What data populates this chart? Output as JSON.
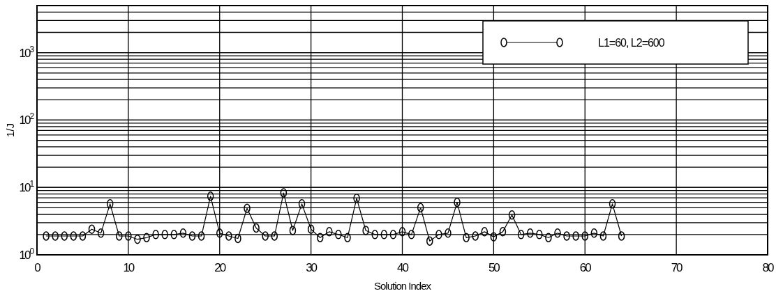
{
  "chart_data": {
    "type": "line",
    "xlabel": "Solution Index",
    "ylabel": "1/J",
    "x": [
      1,
      2,
      3,
      4,
      5,
      6,
      7,
      8,
      9,
      10,
      11,
      12,
      13,
      14,
      15,
      16,
      17,
      18,
      19,
      20,
      21,
      22,
      23,
      24,
      25,
      26,
      27,
      28,
      29,
      30,
      31,
      32,
      33,
      34,
      35,
      36,
      37,
      38,
      39,
      40,
      41,
      42,
      43,
      44,
      45,
      46,
      47,
      48,
      49,
      50,
      51,
      52,
      53,
      54,
      55,
      56,
      57,
      58,
      59,
      60,
      61,
      62,
      63,
      64
    ],
    "series": [
      {
        "name": "L1=60, L2=600",
        "color": "#000000",
        "values": [
          1.9,
          1.9,
          1.9,
          1.9,
          1.9,
          2.4,
          2.1,
          5.7,
          1.9,
          1.9,
          1.7,
          1.8,
          2.0,
          2.0,
          2.0,
          2.1,
          1.9,
          1.9,
          7.4,
          2.1,
          1.9,
          1.75,
          4.9,
          2.5,
          1.9,
          1.9,
          8.3,
          2.3,
          5.7,
          2.4,
          1.8,
          2.2,
          2.0,
          1.8,
          6.9,
          2.3,
          2.0,
          2.0,
          2.0,
          2.2,
          2.0,
          5.0,
          1.6,
          2.0,
          2.1,
          6.0,
          1.8,
          1.9,
          2.2,
          1.85,
          2.2,
          3.9,
          2.0,
          2.1,
          2.0,
          1.8,
          2.1,
          1.9,
          1.9,
          1.9,
          2.1,
          1.9,
          5.7,
          1.9
        ]
      }
    ],
    "xlim": [
      0,
      80
    ],
    "xticks": [
      0,
      10,
      20,
      30,
      40,
      50,
      60,
      70,
      80
    ],
    "ylim": [
      1,
      5000
    ],
    "yticks": [
      {
        "value": 1,
        "label": "10$^{0}$"
      },
      {
        "value": 10,
        "label": "10$^{1}$"
      },
      {
        "value": 100,
        "label": "10$^{2}$"
      },
      {
        "value": 1000,
        "label": "10$^{3}$"
      }
    ],
    "log": "y",
    "grid": true,
    "legend": "top right",
    "marker": "circle",
    "line_style": "solid"
  }
}
